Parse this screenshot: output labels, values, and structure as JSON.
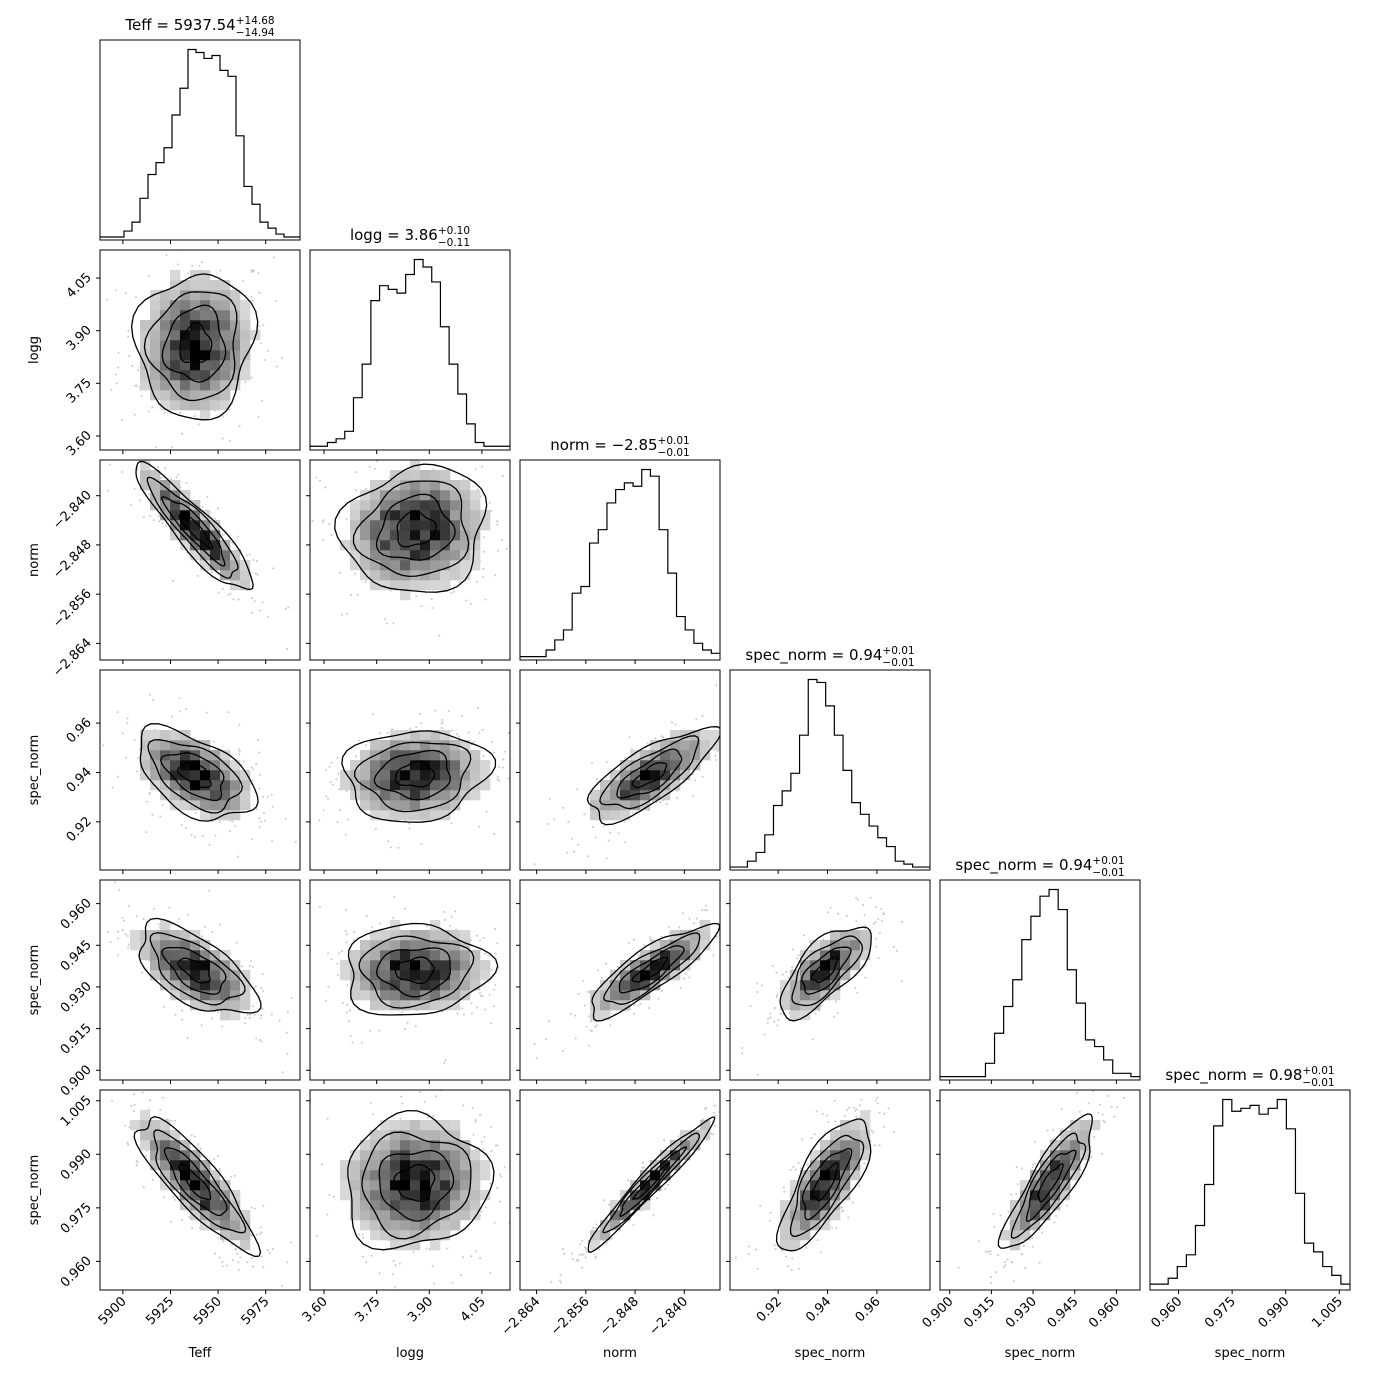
{
  "chart_data": {
    "type": "corner",
    "parameters": [
      {
        "label": "Teff",
        "range": [
          5888,
          5993
        ],
        "ticks": [
          5900,
          5925,
          5950,
          5975
        ],
        "tick_labels": [
          "5900",
          "5925",
          "5950",
          "5975"
        ],
        "median": 5937.54,
        "center": 5938,
        "sigma": 15,
        "title": {
          "prefix": "Teff = ",
          "value": "5937.54",
          "upper": "+14.68",
          "lower": "−14.94"
        }
      },
      {
        "label": "logg",
        "range": [
          3.56,
          4.13
        ],
        "ticks": [
          3.6,
          3.75,
          3.9,
          4.05
        ],
        "tick_labels": [
          "3.60",
          "3.75",
          "3.90",
          "4.05"
        ],
        "median": 3.86,
        "center": 3.86,
        "sigma": 0.1,
        "title": {
          "prefix": "logg = ",
          "value": "3.86",
          "upper": "+0.10",
          "lower": "−0.11"
        }
      },
      {
        "label": "norm",
        "range": [
          -2.8667,
          -2.8342
        ],
        "ticks": [
          -2.864,
          -2.856,
          -2.848,
          -2.84
        ],
        "tick_labels": [
          "−2.864",
          "−2.856",
          "−2.848",
          "−2.840"
        ],
        "median": -2.85,
        "center": -2.8455,
        "sigma": 0.005,
        "title": {
          "prefix": "norm = ",
          "value": "−2.85",
          "upper": "+0.01",
          "lower": "−0.01"
        }
      },
      {
        "label": "spec_norm",
        "range": [
          0.9005,
          0.9815
        ],
        "ticks": [
          0.92,
          0.94,
          0.96
        ],
        "tick_labels": [
          "0.92",
          "0.94",
          "0.96"
        ],
        "median": 0.94,
        "center": 0.939,
        "sigma": 0.009,
        "title": {
          "prefix": "spec_norm = ",
          "value": "0.94",
          "upper": "+0.01",
          "lower": "−0.01"
        }
      },
      {
        "label": "spec_norm",
        "range": [
          0.8965,
          0.9685
        ],
        "ticks": [
          0.9,
          0.915,
          0.93,
          0.945,
          0.96
        ],
        "tick_labels": [
          "0.900",
          "0.915",
          "0.930",
          "0.945",
          "0.960"
        ],
        "median": 0.94,
        "center": 0.936,
        "sigma": 0.008,
        "title": {
          "prefix": "spec_norm = ",
          "value": "0.94",
          "upper": "+0.01",
          "lower": "−0.01"
        }
      },
      {
        "label": "spec_norm",
        "range": [
          0.952,
          1.008
        ],
        "ticks": [
          0.96,
          0.975,
          0.99,
          1.005
        ],
        "tick_labels": [
          "0.960",
          "0.975",
          "0.990",
          "1.005"
        ],
        "median": 0.98,
        "center": 0.982,
        "sigma": 0.009,
        "title": {
          "prefix": "spec_norm = ",
          "value": "0.98",
          "upper": "+0.01",
          "lower": "−0.01"
        }
      }
    ],
    "correlations": [
      [
        1,
        0.05,
        -0.9,
        -0.5,
        -0.6,
        -0.85
      ],
      [
        0.05,
        1,
        0.1,
        0.1,
        0.05,
        0.05
      ],
      [
        -0.9,
        0.1,
        1,
        0.75,
        0.85,
        0.97
      ],
      [
        -0.5,
        0.1,
        0.75,
        1,
        0.7,
        0.75
      ],
      [
        -0.6,
        0.05,
        0.85,
        0.7,
        1,
        0.85
      ],
      [
        -0.85,
        0.05,
        0.97,
        0.75,
        0.85,
        1
      ]
    ],
    "histograms": [
      [
        1,
        1,
        1,
        3,
        6,
        14,
        22,
        26,
        31,
        42,
        51,
        64,
        63,
        61,
        62,
        57,
        55,
        35,
        18,
        12,
        6,
        4,
        2,
        1,
        1
      ],
      [
        1,
        1,
        2,
        3,
        5,
        14,
        23,
        40,
        44,
        43,
        42,
        47,
        51,
        49,
        45,
        33,
        23,
        15,
        7,
        2,
        1,
        1,
        1
      ],
      [
        1,
        1,
        1,
        3,
        6,
        9,
        20,
        22,
        35,
        39,
        47,
        51,
        53,
        52,
        57,
        55,
        39,
        26,
        13,
        9,
        5,
        3,
        2
      ],
      [
        1,
        1,
        3,
        6,
        12,
        22,
        27,
        33,
        46,
        65,
        64,
        56,
        46,
        34,
        23,
        19,
        15,
        11,
        8,
        3,
        2,
        1,
        1
      ],
      [
        1,
        1,
        1,
        1,
        1,
        5,
        14,
        22,
        30,
        42,
        49,
        55,
        57,
        51,
        33,
        23,
        12,
        10,
        6,
        2,
        2,
        1
      ],
      [
        2,
        2,
        4,
        8,
        12,
        22,
        36,
        56,
        65,
        61,
        62,
        63,
        60,
        62,
        65,
        55,
        33,
        16,
        13,
        8,
        5,
        2
      ]
    ]
  }
}
